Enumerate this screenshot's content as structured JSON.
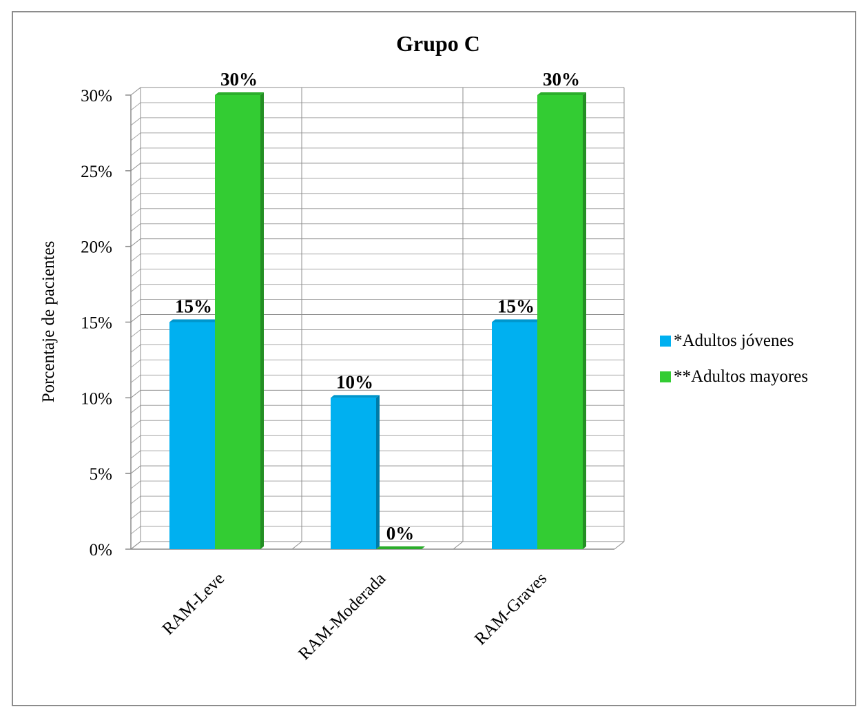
{
  "chart_data": {
    "type": "bar",
    "title": "Grupo C",
    "xlabel": "",
    "ylabel": "Porcentaje de pacientes",
    "categories": [
      "RAM-Leve",
      "RAM-Moderada",
      "RAM-Graves"
    ],
    "series": [
      {
        "name": "*Adultos jóvenes",
        "values": [
          15,
          10,
          15
        ],
        "labels": [
          "15%",
          "10%",
          "15%"
        ],
        "color": "#00b0f0"
      },
      {
        "name": "**Adultos mayores",
        "values": [
          30,
          0,
          30
        ],
        "labels": [
          "30%",
          "0%",
          "30%"
        ],
        "color": "#33cc33"
      }
    ],
    "ylim": [
      0,
      30
    ],
    "yticks": [
      "0%",
      "5%",
      "10%",
      "15%",
      "20%",
      "25%",
      "30%"
    ],
    "grid": true,
    "legend_position": "right",
    "style": "3d-clustered-column"
  }
}
